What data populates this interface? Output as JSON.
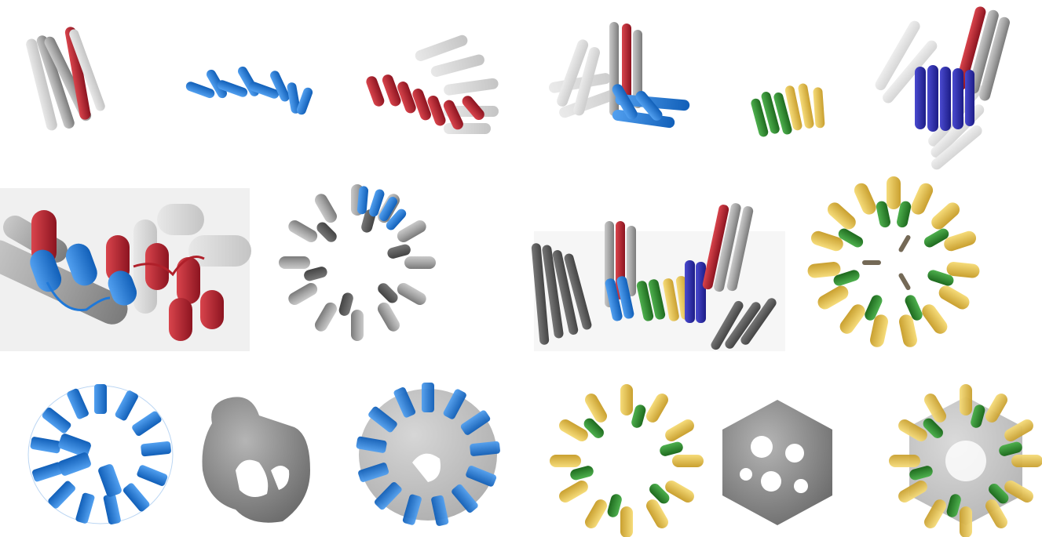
{
  "figure": {
    "description_visible_text": "",
    "colors": {
      "red": "#b0202a",
      "blue": "#1f78d8",
      "navy": "#2a2aa8",
      "green": "#2e8a2e",
      "yellow": "#e8c24a",
      "gray": "#9a9a9a",
      "dark_gray": "#5a5a5a",
      "map_gray": "#8c8c8c"
    },
    "panels": [
      {
        "name": "helix-bundle-gray-red"
      },
      {
        "name": "helical-repeat-blue"
      },
      {
        "name": "helical-repeat-red-gray"
      },
      {
        "name": "junction-gray-red-blue"
      },
      {
        "name": "helix-pair-green-yellow"
      },
      {
        "name": "junction-navy-red-gray"
      },
      {
        "name": "closeup-interface-red-blue"
      },
      {
        "name": "ring-assembly-gray-blue"
      },
      {
        "name": "junction-multicolor"
      },
      {
        "name": "ring-assembly-green-yellow"
      },
      {
        "name": "cage-model-blue"
      },
      {
        "name": "density-map-gray"
      },
      {
        "name": "model-in-map-blue"
      },
      {
        "name": "cage-model-green-yellow"
      },
      {
        "name": "density-map-cage-gray"
      },
      {
        "name": "model-in-map-green-yellow"
      }
    ]
  }
}
